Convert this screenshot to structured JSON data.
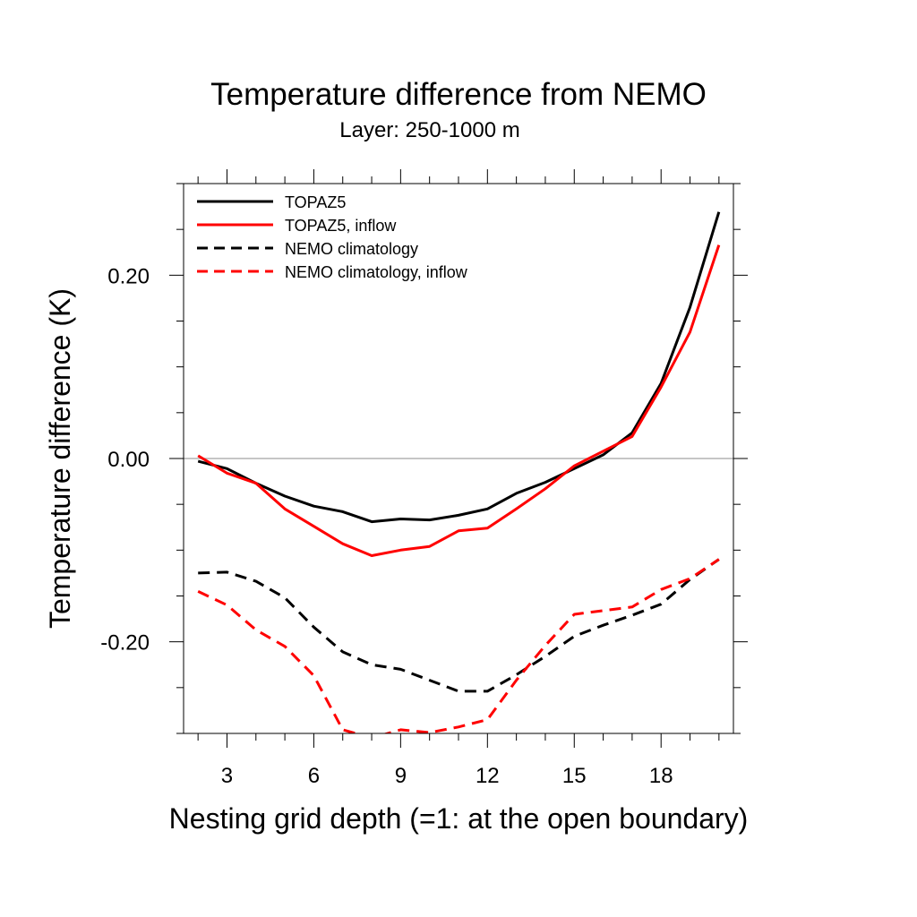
{
  "chart_data": {
    "type": "line",
    "title": "Temperature difference from NEMO",
    "subtitle": "Layer: 250-1000 m",
    "xlabel": "Nesting grid depth (=1: at the open boundary)",
    "ylabel": "Temperature difference (K)",
    "xlim": [
      1.5,
      20.5
    ],
    "ylim": [
      -0.3,
      0.3
    ],
    "xticks": [
      3,
      6,
      9,
      12,
      15,
      18
    ],
    "xtick_labels": [
      "3",
      "6",
      "9",
      "12",
      "15",
      "18"
    ],
    "yticks": [
      -0.2,
      0.0,
      0.2
    ],
    "ytick_labels": [
      "-0.20",
      "0.00",
      "0.20"
    ],
    "reference_line": 0,
    "legend_position": "top-left",
    "x": [
      2,
      3,
      4,
      5,
      6,
      7,
      8,
      9,
      10,
      11,
      12,
      13,
      14,
      15,
      16,
      17,
      18,
      19,
      20
    ],
    "series": [
      {
        "name": "TOPAZ5",
        "color": "#000000",
        "dash": "solid",
        "values": [
          -0.003,
          -0.011,
          -0.027,
          -0.041,
          -0.052,
          -0.058,
          -0.069,
          -0.066,
          -0.067,
          -0.062,
          -0.055,
          -0.038,
          -0.026,
          -0.011,
          0.004,
          0.028,
          0.082,
          0.165,
          0.269
        ]
      },
      {
        "name": "TOPAZ5, inflow",
        "color": "#ff0000",
        "dash": "solid",
        "values": [
          0.003,
          -0.016,
          -0.027,
          -0.055,
          -0.074,
          -0.093,
          -0.106,
          -0.1,
          -0.096,
          -0.079,
          -0.076,
          -0.055,
          -0.033,
          -0.008,
          0.008,
          0.024,
          0.078,
          0.138,
          0.233
        ]
      },
      {
        "name": "NEMO climatology",
        "color": "#000000",
        "dash": "dashed",
        "values": [
          -0.125,
          -0.124,
          -0.134,
          -0.152,
          -0.184,
          -0.211,
          -0.225,
          -0.23,
          -0.242,
          -0.254,
          -0.254,
          -0.236,
          -0.216,
          -0.194,
          -0.182,
          -0.171,
          -0.159,
          -0.132,
          -0.11
        ]
      },
      {
        "name": "NEMO climatology, inflow",
        "color": "#ff0000",
        "dash": "dashed",
        "values": [
          -0.145,
          -0.16,
          -0.187,
          -0.205,
          -0.237,
          -0.296,
          -0.305,
          -0.296,
          -0.299,
          -0.293,
          -0.285,
          -0.242,
          -0.204,
          -0.17,
          -0.166,
          -0.162,
          -0.143,
          -0.131,
          -0.11
        ]
      }
    ]
  }
}
